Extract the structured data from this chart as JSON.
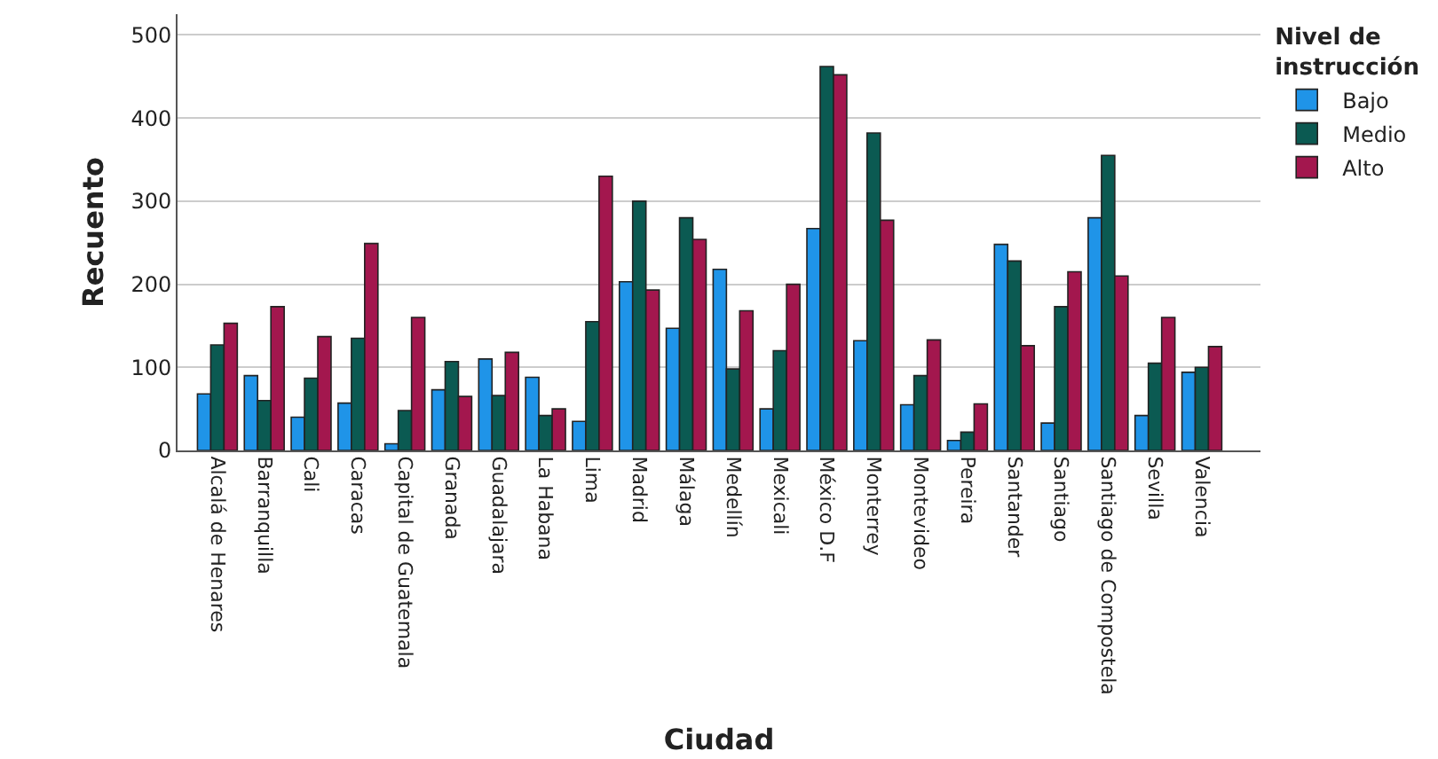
{
  "chart_data": {
    "type": "bar",
    "xlabel": "Ciudad",
    "ylabel": "Recuento",
    "legend_title": "Nivel de instrucción",
    "legend": "top right",
    "grid": "y",
    "categories": [
      "Alcalá de Henares",
      "Barranquilla",
      "Cali",
      "Caracas",
      "Capital de Guatemala",
      "Granada",
      "Guadalajara",
      "La Habana",
      "Lima",
      "Madrid",
      "Málaga",
      "Medellín",
      "Mexicali",
      "México D.F",
      "Monterrey",
      "Montevideo",
      "Pereira",
      "Santander",
      "Santiago",
      "Santiago de Compostela",
      "Sevilla",
      "Valencia"
    ],
    "ylim": [
      0,
      525
    ],
    "yticks": [
      0,
      100,
      200,
      300,
      400,
      500
    ],
    "series": [
      {
        "name": "Bajo",
        "color": "#1f94e8",
        "values": [
          68,
          90,
          40,
          57,
          8,
          73,
          110,
          88,
          35,
          203,
          147,
          218,
          50,
          267,
          132,
          55,
          12,
          248,
          33,
          280,
          42,
          94
        ]
      },
      {
        "name": "Medio",
        "color": "#0b5a52",
        "values": [
          127,
          60,
          87,
          135,
          48,
          107,
          66,
          42,
          155,
          300,
          280,
          98,
          120,
          462,
          382,
          90,
          22,
          228,
          173,
          355,
          105,
          100
        ]
      },
      {
        "name": "Alto",
        "color": "#a3174e",
        "values": [
          153,
          173,
          137,
          249,
          160,
          65,
          118,
          50,
          330,
          193,
          254,
          168,
          200,
          452,
          277,
          133,
          56,
          126,
          215,
          210,
          160,
          125
        ]
      }
    ]
  }
}
